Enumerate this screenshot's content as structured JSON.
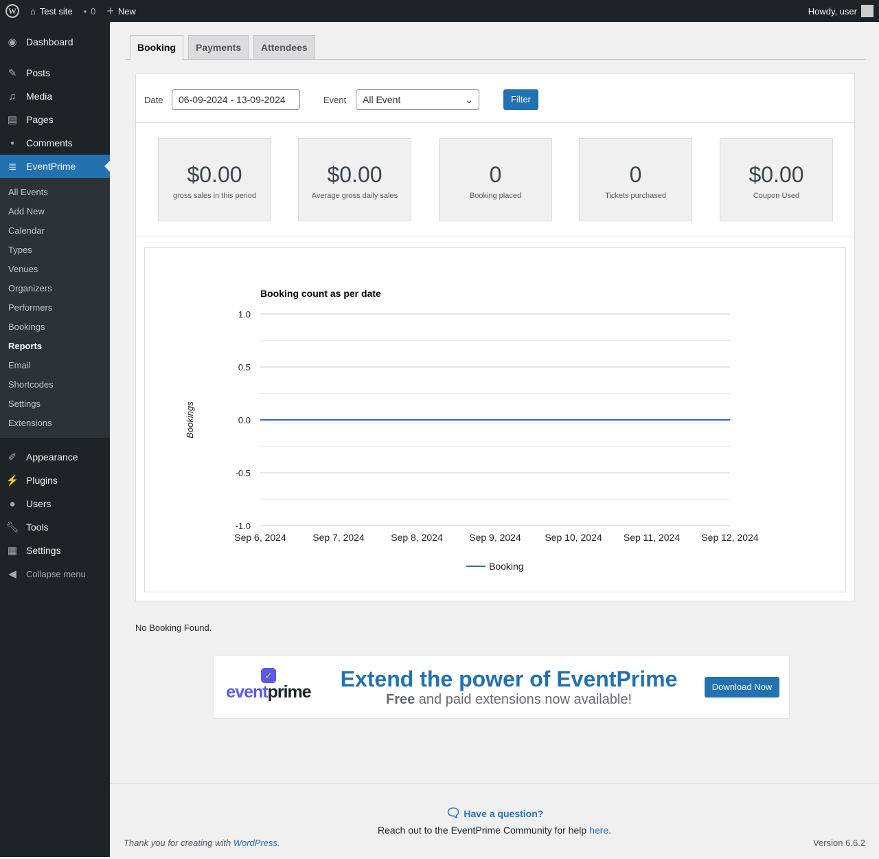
{
  "adminbar": {
    "site": "Test site",
    "comments": "0",
    "new": "New",
    "howdy": "Howdy, user"
  },
  "sidebar": {
    "items": [
      {
        "label": "Dashboard",
        "icon": "dashboard-icon"
      },
      {
        "label": "Posts",
        "icon": "pin-icon"
      },
      {
        "label": "Media",
        "icon": "media-icon"
      },
      {
        "label": "Pages",
        "icon": "pages-icon"
      },
      {
        "label": "Comments",
        "icon": "comment-icon"
      },
      {
        "label": "EventPrime",
        "icon": "tickets-icon"
      }
    ],
    "submenu": [
      "All Events",
      "Add New",
      "Calendar",
      "Types",
      "Venues",
      "Organizers",
      "Performers",
      "Bookings",
      "Reports",
      "Email",
      "Shortcodes",
      "Settings",
      "Extensions"
    ],
    "items2": [
      {
        "label": "Appearance"
      },
      {
        "label": "Plugins"
      },
      {
        "label": "Users"
      },
      {
        "label": "Tools"
      },
      {
        "label": "Settings"
      }
    ],
    "collapse": "Collapse menu"
  },
  "tabs": [
    "Booking",
    "Payments",
    "Attendees"
  ],
  "filter": {
    "date_label": "Date",
    "date_value": "06-09-2024 - 13-09-2024",
    "event_label": "Event",
    "event_value": "All Event",
    "button": "Filter"
  },
  "cards": [
    {
      "value": "$0.00",
      "label": "gross sales in this period"
    },
    {
      "value": "$0.00",
      "label": "Average gross daily sales"
    },
    {
      "value": "0",
      "label": "Booking placed"
    },
    {
      "value": "0",
      "label": "Tickets purchased"
    },
    {
      "value": "$0.00",
      "label": "Coupon Used"
    }
  ],
  "chart_data": {
    "type": "line",
    "title": "Booking count as per date",
    "xlabel": "",
    "ylabel": "Bookings",
    "categories": [
      "Sep 6, 2024",
      "Sep 7, 2024",
      "Sep 8, 2024",
      "Sep 9, 2024",
      "Sep 10, 2024",
      "Sep 11, 2024",
      "Sep 12, 2024"
    ],
    "series": [
      {
        "name": "Booking",
        "values": [
          0,
          0,
          0,
          0,
          0,
          0,
          0
        ],
        "color": "#3366cc"
      }
    ],
    "ylim": [
      -1,
      1
    ],
    "yticks": [
      "1.0",
      "0.5",
      "0.0",
      "-0.5",
      "-1.0"
    ],
    "grid": true,
    "legend": "bottom"
  },
  "no_booking": "No Booking Found.",
  "promo": {
    "logo": "eventprime",
    "headline": "Extend the power of EventPrime",
    "sub_bold": "Free",
    "sub_rest": " and paid extensions now available!",
    "button": "Download Now"
  },
  "footer": {
    "question": "Have a question?",
    "reach": "Reach out to the EventPrime Community for help ",
    "here": "here",
    "thanks": "Thank you for creating with ",
    "wp": "WordPress",
    "version": "Version 6.6.2"
  }
}
